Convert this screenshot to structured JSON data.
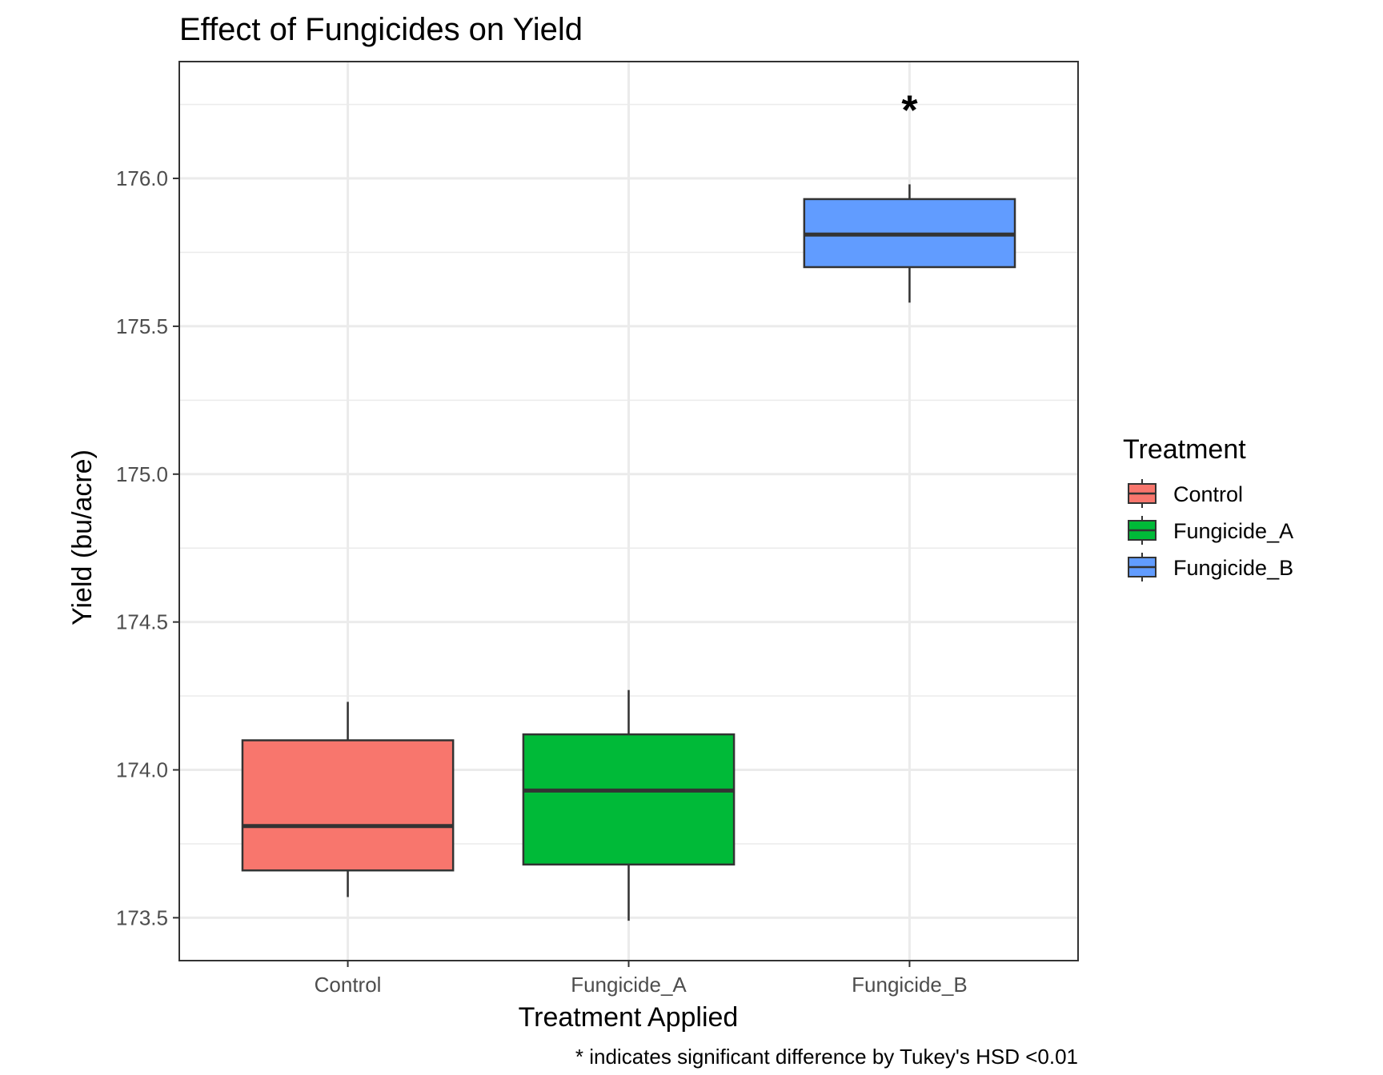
{
  "chart_data": {
    "type": "box",
    "title": "Effect of Fungicides on Yield",
    "xlabel": "Treatment Applied",
    "ylabel": "Yield (bu/acre)",
    "caption": "* indicates significant difference by Tukey's HSD <0.01",
    "categories": [
      "Control",
      "Fungicide_A",
      "Fungicide_B"
    ],
    "ylim": [
      173.355,
      176.395
    ],
    "yticks": [
      173.5,
      174.0,
      174.5,
      175.0,
      175.5,
      176.0
    ],
    "ytick_labels": [
      "173.5",
      "174.0",
      "174.5",
      "175.0",
      "175.5",
      "176.0"
    ],
    "grid": true,
    "legend": {
      "title": "Treatment",
      "position": "right",
      "entries": [
        "Control",
        "Fungicide_A",
        "Fungicide_B"
      ]
    },
    "series": [
      {
        "name": "Control",
        "color": "#F8766D",
        "min": 173.57,
        "q1": 173.66,
        "median": 173.81,
        "q3": 174.1,
        "max": 174.23
      },
      {
        "name": "Fungicide_A",
        "color": "#00BA38",
        "min": 173.49,
        "q1": 173.68,
        "median": 173.93,
        "q3": 174.12,
        "max": 174.27
      },
      {
        "name": "Fungicide_B",
        "color": "#619CFF",
        "min": 175.58,
        "q1": 175.7,
        "median": 175.81,
        "q3": 175.93,
        "max": 175.98
      }
    ],
    "annotations": [
      {
        "category": "Fungicide_B",
        "text": "*",
        "y": 176.28
      }
    ]
  }
}
